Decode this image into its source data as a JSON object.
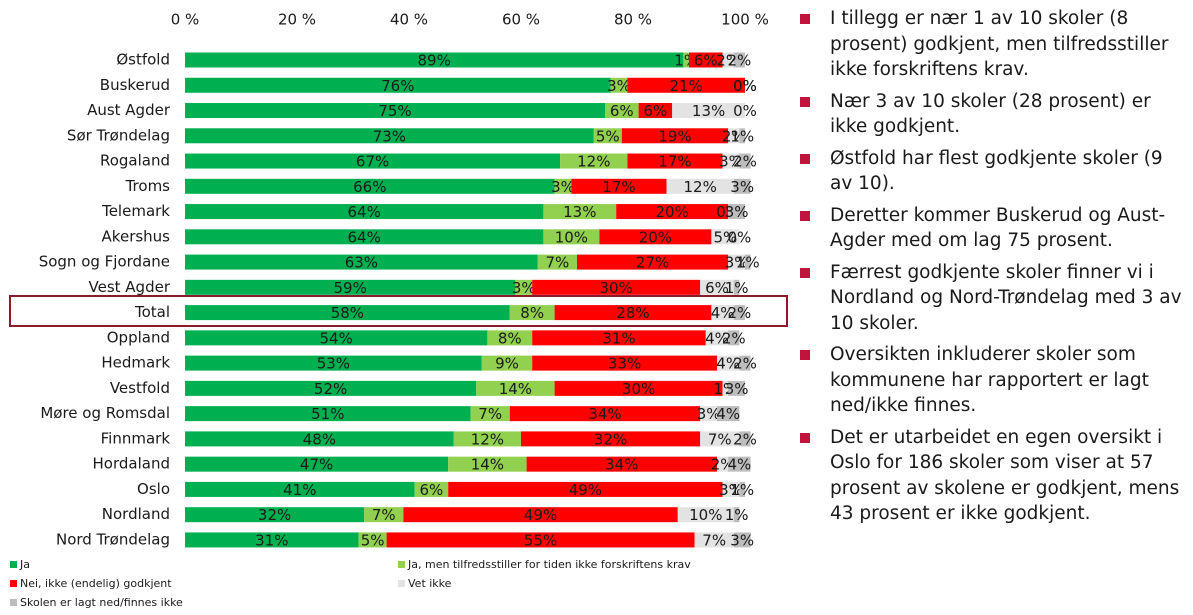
{
  "chart_data": {
    "type": "stacked-bar-horizontal",
    "categories": [
      "Østfold",
      "Buskerud",
      "Aust Agder",
      "Sør Trøndelag",
      "Rogaland",
      "Troms",
      "Telemark",
      "Akershus",
      "Sogn og Fjordane",
      "Vest Agder",
      "Total",
      "Oppland",
      "Hedmark",
      "Vestfold",
      "Møre og Romsdal",
      "Finnmark",
      "Hordaland",
      "Oslo",
      "Nordland",
      "Nord Trøndelag"
    ],
    "series": [
      {
        "name": "Ja",
        "color": "#00b050",
        "values": [
          89,
          76,
          75,
          73,
          67,
          66,
          64,
          64,
          63,
          59,
          58,
          54,
          53,
          52,
          51,
          48,
          47,
          41,
          32,
          31
        ],
        "value_labels": [
          "89%",
          "76%",
          "75%",
          "73%",
          "67%",
          "66%",
          "64%",
          "64%",
          "63%",
          "59%",
          "58%",
          "54%",
          "53%",
          "52%",
          "51%",
          "48%",
          "47%",
          "41%",
          "32%",
          "31%"
        ]
      },
      {
        "name": "Ja, men tilfredsstiller for tiden ikke forskriftens krav",
        "color": "#92d050",
        "values": [
          1,
          3,
          6,
          5,
          12,
          3,
          13,
          10,
          7,
          3,
          8,
          8,
          9,
          14,
          7,
          12,
          14,
          6,
          7,
          5
        ],
        "value_labels": [
          "1%",
          "3%",
          "6%",
          "5%",
          "12%",
          "3%",
          "13%",
          "10%",
          "7%",
          "3%",
          "8%",
          "8%",
          "9%",
          "14%",
          "7%",
          "12%",
          "14%",
          "6%",
          "7%",
          "5%"
        ]
      },
      {
        "name": "Nei, ikke (endelig) godkjent",
        "color": "#ff0000",
        "values": [
          6,
          21,
          6,
          19,
          17,
          17,
          20,
          20,
          27,
          30,
          28,
          31,
          33,
          30,
          34,
          32,
          34,
          49,
          49,
          55
        ],
        "value_labels": [
          "6%",
          "21%",
          "6%",
          "19%",
          "17%",
          "17%",
          "20%",
          "20%",
          "27%",
          "30%",
          "28%",
          "31%",
          "33%",
          "30%",
          "34%",
          "32%",
          "34%",
          "49%",
          "49%",
          "55%"
        ]
      },
      {
        "name": "Vet ikke",
        "color": "#e3e3e3",
        "values": [
          2,
          0,
          13,
          2,
          3,
          12,
          0,
          5,
          3,
          6,
          4,
          4,
          4,
          1,
          3,
          7,
          2,
          3,
          10,
          7
        ],
        "value_labels": [
          "2%",
          "0%",
          "13%",
          "2%",
          "3%",
          "12%",
          "0%",
          "5%",
          "3%",
          "6%",
          "4%",
          "4%",
          "4%",
          "1%",
          "3%",
          "7%",
          "2%",
          "3%",
          "10%",
          "7%"
        ]
      },
      {
        "name": "Skolen er lagt ned/finnes ikke",
        "color": "#bdbdbd",
        "values": [
          2,
          0,
          0,
          1,
          2,
          3,
          3,
          0,
          1,
          1,
          2,
          2,
          2,
          3,
          4,
          2,
          4,
          1,
          1,
          3
        ],
        "value_labels": [
          "2%",
          "0%",
          "0%",
          "1%",
          "2%",
          "3%",
          "3%",
          "0%",
          "1%",
          "1%",
          "2%",
          "2%",
          "2%",
          "3%",
          "4%",
          "2%",
          "4%",
          "1%",
          "1%",
          "3%"
        ]
      }
    ],
    "xlim": [
      0,
      100
    ],
    "xticks": [
      {
        "value": 0,
        "label": "0 %"
      },
      {
        "value": 20,
        "label": "20 %"
      },
      {
        "value": 40,
        "label": "40 %"
      },
      {
        "value": 60,
        "label": "60 %"
      },
      {
        "value": 80,
        "label": "80 %"
      },
      {
        "value": 100,
        "label": "100 %"
      }
    ]
  },
  "bullets": [
    "I tillegg er nær 1 av 10 skoler (8 prosent) godkjent, men tilfredsstiller ikke forskriftens krav.",
    "Nær 3 av 10 skoler (28 prosent) er ikke godkjent.",
    "Østfold har flest godkjente skoler (9 av 10).",
    "Deretter kommer Buskerud og Aust-Agder med om lag 75 prosent.",
    "Færrest godkjente skoler finner vi i Nordland og Nord-Trøndelag med 3 av 10 skoler.",
    "Oversikten inkluderer skoler som kommunene har rapportert er lagt ned/ikke finnes.",
    "Det er utarbeidet en egen oversikt i Oslo for 186 skoler som viser at 57 prosent av skolene er godkjent, mens 43 prosent er ikke godkjent."
  ]
}
